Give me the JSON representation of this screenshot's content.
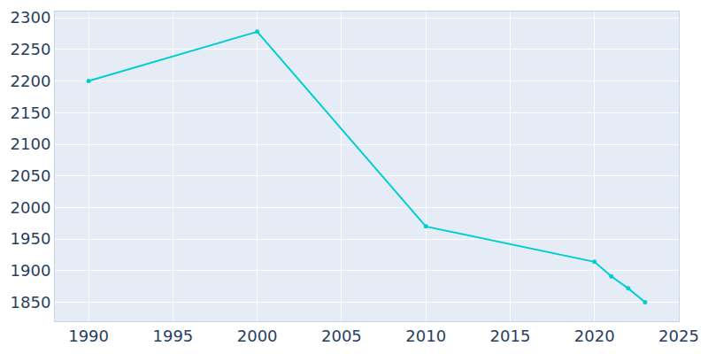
{
  "chart_data": {
    "type": "line",
    "x": [
      1990,
      2000,
      2010,
      2020,
      2021,
      2022,
      2023
    ],
    "values": [
      2200,
      2278,
      1970,
      1914,
      1891,
      1872,
      1850
    ],
    "color": "#00CED1",
    "marker": "circle",
    "xlim": [
      1988,
      2025
    ],
    "xticks": [
      1990,
      1995,
      2000,
      2005,
      2010,
      2015,
      2020,
      2025
    ],
    "ylim": [
      1820,
      2310
    ],
    "yticks": [
      1850,
      1900,
      1950,
      2000,
      2050,
      2100,
      2150,
      2200,
      2250,
      2300
    ],
    "grid": true
  }
}
